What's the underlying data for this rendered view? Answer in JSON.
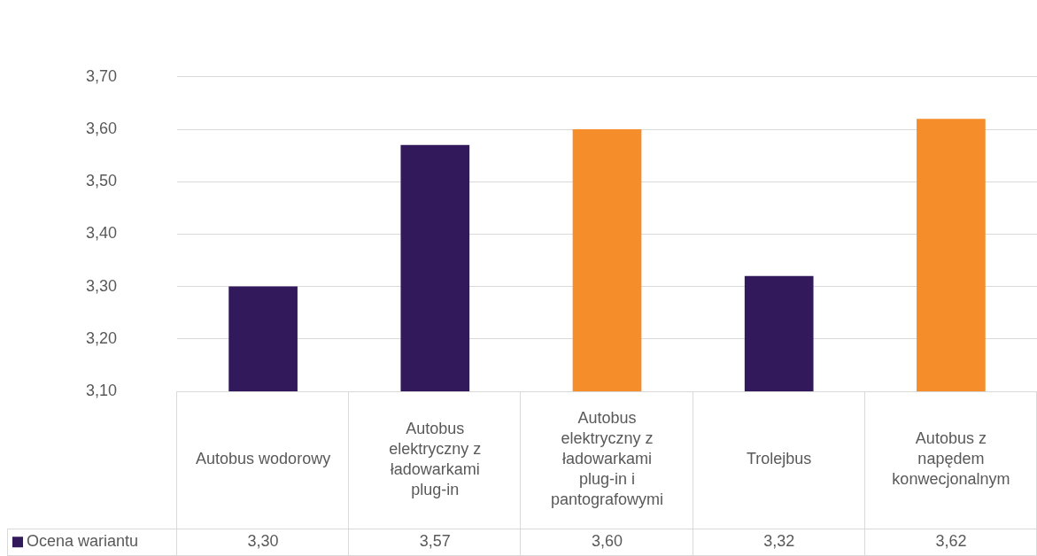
{
  "chart_data": {
    "type": "bar",
    "categories": [
      "Autobus wodorowy",
      "Autobus elektryczny z ładowarkami plug-in",
      "Autobus elektryczny z ładowarkami plug-in i pantografowymi",
      "Trolejbus",
      "Autobus z napędem konwecjonalnym"
    ],
    "series": [
      {
        "name": "Ocena wariantu",
        "color": "#32195c",
        "colors": [
          "#32195c",
          "#32195c",
          "#f58d2b",
          "#32195c",
          "#f58d2b"
        ],
        "values": [
          3.3,
          3.57,
          3.6,
          3.32,
          3.62
        ],
        "value_labels": [
          "3,30",
          "3,57",
          "3,60",
          "3,32",
          "3,62"
        ]
      }
    ],
    "ylim": [
      3.1,
      3.7
    ],
    "yticks": [
      {
        "value": 3.1,
        "label": "3,10"
      },
      {
        "value": 3.2,
        "label": "3,20"
      },
      {
        "value": 3.3,
        "label": "3,30"
      },
      {
        "value": 3.4,
        "label": "3,40"
      },
      {
        "value": 3.5,
        "label": "3,50"
      },
      {
        "value": 3.6,
        "label": "3,60"
      },
      {
        "value": 3.7,
        "label": "3,70"
      }
    ],
    "grid": "y",
    "legend": "bottom left"
  }
}
